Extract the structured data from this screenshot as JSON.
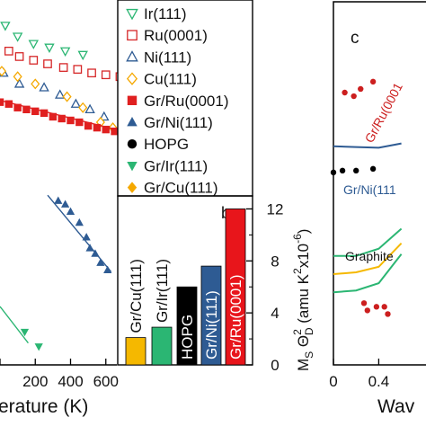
{
  "chart_data": [
    {
      "panel": "a",
      "type": "scatter",
      "xlabel": "erature (K)",
      "xticks": [
        "0",
        "200",
        "400",
        "600"
      ],
      "xlim": [
        0,
        800
      ],
      "ylim": [
        0,
        1
      ],
      "legend_placement": "right",
      "series": [
        {
          "name": "Ir(111)",
          "marker": "triangle-down-open",
          "color": "#2bb673",
          "points": [
            [
              30,
              0.93
            ],
            [
              100,
              0.9
            ],
            [
              190,
              0.88
            ],
            [
              280,
              0.87
            ],
            [
              370,
              0.86
            ],
            [
              470,
              0.85
            ]
          ]
        },
        {
          "name": "Ru(0001)",
          "marker": "square-open",
          "color": "#d62728",
          "points": [
            [
              50,
              0.86
            ],
            [
              110,
              0.845
            ],
            [
              190,
              0.835
            ],
            [
              270,
              0.825
            ],
            [
              360,
              0.815
            ],
            [
              440,
              0.81
            ],
            [
              520,
              0.8
            ],
            [
              600,
              0.795
            ],
            [
              680,
              0.79
            ]
          ]
        },
        {
          "name": "Ni(111)",
          "marker": "triangle-up-open",
          "color": "#2e5b93",
          "points": [
            [
              20,
              0.8
            ],
            [
              110,
              0.77
            ],
            [
              250,
              0.76
            ],
            [
              340,
              0.74
            ],
            [
              430,
              0.715
            ],
            [
              510,
              0.7
            ],
            [
              590,
              0.68
            ]
          ]
        },
        {
          "name": "Cu(111)",
          "marker": "diamond-open",
          "color": "#f5a800",
          "points": [
            [
              10,
              0.805
            ],
            [
              100,
              0.79
            ],
            [
              200,
              0.77
            ],
            [
              380,
              0.735
            ],
            [
              470,
              0.705
            ],
            [
              570,
              0.665
            ],
            [
              640,
              0.65
            ],
            [
              700,
              0.605
            ]
          ]
        },
        {
          "name": "Gr/Ru(0001)",
          "marker": "square-filled",
          "color": "#e02020",
          "points": [
            [
              0,
              0.72
            ],
            [
              50,
              0.715
            ],
            [
              100,
              0.705
            ],
            [
              150,
              0.7
            ],
            [
              200,
              0.695
            ],
            [
              250,
              0.69
            ],
            [
              300,
              0.68
            ],
            [
              350,
              0.675
            ],
            [
              400,
              0.67
            ],
            [
              450,
              0.665
            ],
            [
              500,
              0.655
            ],
            [
              550,
              0.65
            ],
            [
              600,
              0.645
            ],
            [
              650,
              0.64
            ],
            [
              700,
              0.635
            ]
          ],
          "fit_line": [
            [
              0,
              0.725
            ],
            [
              700,
              0.64
            ]
          ]
        },
        {
          "name": "Gr/Ni(111)",
          "marker": "triangle-up-filled",
          "color": "#2e5b93",
          "points": [
            [
              330,
              0.45
            ],
            [
              370,
              0.44
            ],
            [
              400,
              0.42
            ],
            [
              450,
              0.39
            ],
            [
              490,
              0.35
            ],
            [
              510,
              0.32
            ],
            [
              540,
              0.305
            ],
            [
              570,
              0.28
            ],
            [
              610,
              0.26
            ]
          ],
          "fit_line": [
            [
              270,
              0.465
            ],
            [
              630,
              0.255
            ]
          ]
        },
        {
          "name": "HOPG",
          "marker": "circle-filled",
          "color": "#000000",
          "points": []
        },
        {
          "name": "Gr/Ir(111)",
          "marker": "triangle-down-filled",
          "color": "#2bb673",
          "points": [
            [
              140,
              0.09
            ],
            [
              220,
              0.05
            ]
          ],
          "fit_line": [
            [
              0,
              0.16
            ],
            [
              160,
              0.06
            ]
          ]
        },
        {
          "name": "Gr/Cu(111)",
          "marker": "diamond-filled",
          "color": "#f5a800",
          "points": []
        }
      ]
    },
    {
      "panel": "b",
      "label": "b",
      "type": "bar",
      "categories": [
        "Gr/Cu(111)",
        "Gr/Ir(111)",
        "HOPG",
        "Gr/Ni(111)",
        "Gr/Ru(0001)"
      ],
      "values": [
        2.1,
        2.9,
        6.0,
        7.6,
        12.0
      ],
      "colors": [
        "#f5b800",
        "#2bb673",
        "#000000",
        "#2e5b93",
        "#e8151b"
      ],
      "ylim": [
        0,
        13
      ],
      "yticks": [
        "0",
        "4",
        "8",
        "12"
      ],
      "ylabel_parts": {
        "main": "M",
        "sub1": "S",
        "mid": " Θ",
        "sup2": "2",
        "sub2": "D",
        "unit_open": " (amu K",
        "sup_unit": "2",
        "unit_mid": "x10",
        "sup_exp": "-6",
        "unit_close": ")"
      }
    },
    {
      "panel": "c",
      "label": "c",
      "type": "line",
      "xlabel": "Wav",
      "xticks": [
        "0",
        "0.4"
      ],
      "xlim": [
        0,
        0.6
      ],
      "ylim": [
        0,
        1
      ],
      "annotations": [
        "Gr/Ru(0001",
        "Gr/Ni(111",
        "Graphite"
      ],
      "series": [
        {
          "name": "Gr/Ru(0001)",
          "kind": "points",
          "color": "#cc1f1f",
          "points": [
            [
              0.1,
              0.75
            ],
            [
              0.18,
              0.74
            ],
            [
              0.24,
              0.76
            ],
            [
              0.35,
              0.78
            ],
            [
              0.27,
              0.17
            ],
            [
              0.3,
              0.15
            ],
            [
              0.38,
              0.16
            ],
            [
              0.45,
              0.16
            ],
            [
              0.48,
              0.14
            ]
          ]
        },
        {
          "name": "Gr/Ni(111)",
          "kind": "line",
          "color": "#2e5b93",
          "points": [
            [
              0,
              0.602
            ],
            [
              0.2,
              0.6
            ],
            [
              0.4,
              0.598
            ],
            [
              0.6,
              0.61
            ]
          ]
        },
        {
          "name": "Graphite",
          "kind": "points",
          "color": "#000000",
          "points": [
            [
              0.0,
              0.53
            ],
            [
              0.08,
              0.535
            ],
            [
              0.2,
              0.535
            ],
            [
              0.35,
              0.54
            ]
          ]
        },
        {
          "name": "green-1",
          "kind": "line",
          "color": "#2bb673",
          "points": [
            [
              0,
              0.3
            ],
            [
              0.2,
              0.3
            ],
            [
              0.4,
              0.32
            ],
            [
              0.6,
              0.375
            ]
          ]
        },
        {
          "name": "orange",
          "kind": "line",
          "color": "#f5b800",
          "points": [
            [
              0,
              0.25
            ],
            [
              0.2,
              0.255
            ],
            [
              0.4,
              0.27
            ],
            [
              0.6,
              0.335
            ]
          ]
        },
        {
          "name": "green-2",
          "kind": "line",
          "color": "#2bb673",
          "points": [
            [
              0,
              0.2
            ],
            [
              0.2,
              0.205
            ],
            [
              0.4,
              0.225
            ],
            [
              0.6,
              0.305
            ]
          ]
        }
      ]
    }
  ]
}
